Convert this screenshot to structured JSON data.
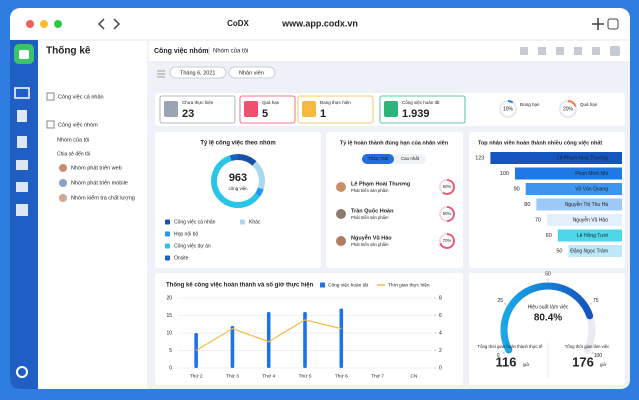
{
  "browser": {
    "logo": "CoDX",
    "url": "www.app.codx.vn"
  },
  "sidebar": {
    "title": "Thống kê",
    "personal": "Công việc cá nhân",
    "team": "Công việc nhóm",
    "active": "Nhóm của tôi",
    "shared": "Chia sẻ đến tôi",
    "groups": [
      "Nhóm phát triển web",
      "Nhóm phát triển mobile",
      "Nhóm kiểm tra chất lượng"
    ]
  },
  "header": {
    "title": "Công việc nhóm",
    "breadcrumb": "Nhóm của tôi",
    "filters": [
      "Tháng 6, 2021",
      "Nhân viên"
    ]
  },
  "stats": [
    {
      "label": "Chưa thực hiện",
      "value": "23",
      "color": "#9aa4b5"
    },
    {
      "label": "Quá hạn",
      "value": "5",
      "color": "#f0506e"
    },
    {
      "label": "Đang thực hiện",
      "value": "1",
      "color": "#f5b942"
    },
    {
      "label": "Công việc hoàn tất",
      "value": "1.939",
      "color": "#2fb37a"
    }
  ],
  "rings": [
    {
      "label": "Đúng hạn",
      "value": 10,
      "value_label": "10%",
      "color": "#2f7de1"
    },
    {
      "label": "Quá hạn",
      "value": 20,
      "value_label": "20%",
      "color": "#f57c4b"
    }
  ],
  "group_chart": {
    "type": "donut",
    "title": "Tỷ lệ công việc theo nhóm",
    "total": "963",
    "total_label": "công việc",
    "categories": [
      "Công việc cá nhân",
      "Khác",
      "Họp nội bộ",
      "Công việc dự án",
      "Onsite"
    ],
    "values": [
      12,
      18,
      5,
      60,
      5
    ],
    "colors": [
      "#1a4fa8",
      "#a7d8f0",
      "#2196f3",
      "#29c5e6",
      "#1565c0"
    ]
  },
  "on_time": {
    "title": "Tỷ lệ hoàn thành đúng hạn của nhân viên",
    "tabs": [
      "Thấp nhất",
      "Cao nhất"
    ],
    "people": [
      {
        "name": "Lê Phạm Hoài Thương",
        "role": "Phát triển sản phẩm",
        "value": 60,
        "value_label": "60%"
      },
      {
        "name": "Trần Quốc Hoàn",
        "role": "Phát triển sản phẩm",
        "value": 50,
        "value_label": "50%"
      },
      {
        "name": "Nguyễn Vũ Hảo",
        "role": "Phát triển sản phẩm",
        "value": 70,
        "value_label": "70%"
      }
    ],
    "color": "#f0506e"
  },
  "top": {
    "type": "bar",
    "title": "Top nhân viên hoàn thành nhiều công việc nhất",
    "categories": [
      "Lê Phạm Hoài Thương",
      "Phan Minh Nhi",
      "Võ Văn Quang",
      "Nguyễn Thị Thu Hà",
      "Nguyễn Vũ Hảo",
      "Lê Hồng Tươi",
      "Đặng Ngọc Trâm"
    ],
    "values": [
      123,
      100,
      90,
      80,
      70,
      60,
      50
    ],
    "colors": [
      "#1455c0",
      "#1e78e6",
      "#3d95f0",
      "#9cc9f5",
      "#e3effb",
      "#4dd6e8",
      "#bfe7fa"
    ]
  },
  "weekly": {
    "type": "bar-line",
    "title": "Thống kê công việc hoàn thành và số giờ thực hiện",
    "categories": [
      "Thứ 2",
      "Thứ 3",
      "Thứ 4",
      "Thứ 5",
      "Thứ 6",
      "Thứ 7",
      "CN"
    ],
    "series": [
      {
        "name": "Công việc hoàn tất",
        "color": "#1e73e8",
        "values": [
          10,
          12,
          16,
          16,
          17,
          null,
          null
        ]
      },
      {
        "name": "Thời gian thực hiện",
        "color": "#f5b942",
        "axis": "y2",
        "values": [
          2,
          4.5,
          3,
          5.5,
          4.5,
          null,
          null
        ]
      }
    ],
    "ylim": [
      0,
      20
    ],
    "yticks": [
      0,
      5,
      10,
      15,
      20
    ],
    "y2lim": [
      0,
      8
    ],
    "y2ticks": [
      0,
      2,
      4,
      6,
      8
    ],
    "grid": true
  },
  "gauge": {
    "title": "Hiệu suất làm việc",
    "value": 80.4,
    "value_label": "80.4%",
    "lim": [
      0,
      100
    ],
    "ticks": [
      0,
      25,
      50,
      75,
      100
    ],
    "stats": [
      {
        "label": "Tổng thời gian hoàn thành thực tế",
        "value": "116",
        "unit": "giờ"
      },
      {
        "label": "Tổng thời gian làm việc",
        "value": "176",
        "unit": "giờ"
      }
    ]
  }
}
